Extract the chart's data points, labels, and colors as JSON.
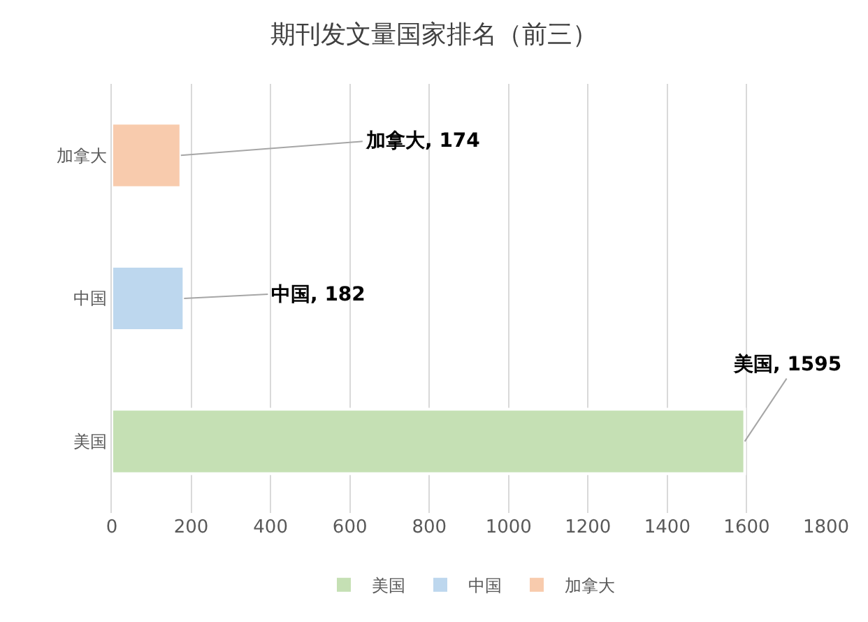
{
  "chart_data": {
    "type": "bar",
    "orientation": "horizontal",
    "title": "期刊发文量国家排名（前三）",
    "categories": [
      "加拿大",
      "中国",
      "美国"
    ],
    "series": [
      {
        "name": "美国",
        "color": "#c5e0b4",
        "values": [
          null,
          null,
          1595
        ],
        "value_labels": [
          null,
          null,
          "美国, 1595"
        ]
      },
      {
        "name": "中国",
        "color": "#bdd7ee",
        "values": [
          null,
          182,
          null
        ],
        "value_labels": [
          null,
          "中国, 182",
          null
        ]
      },
      {
        "name": "加拿大",
        "color": "#f8cbad",
        "values": [
          174,
          null,
          null
        ],
        "value_labels": [
          "加拿大, 174",
          null,
          null
        ]
      }
    ],
    "xlim": [
      0,
      1800
    ],
    "xticks": [
      0,
      200,
      400,
      600,
      800,
      1000,
      1200,
      1400,
      1600,
      1800
    ],
    "grid": "x",
    "legend": "bottom"
  }
}
